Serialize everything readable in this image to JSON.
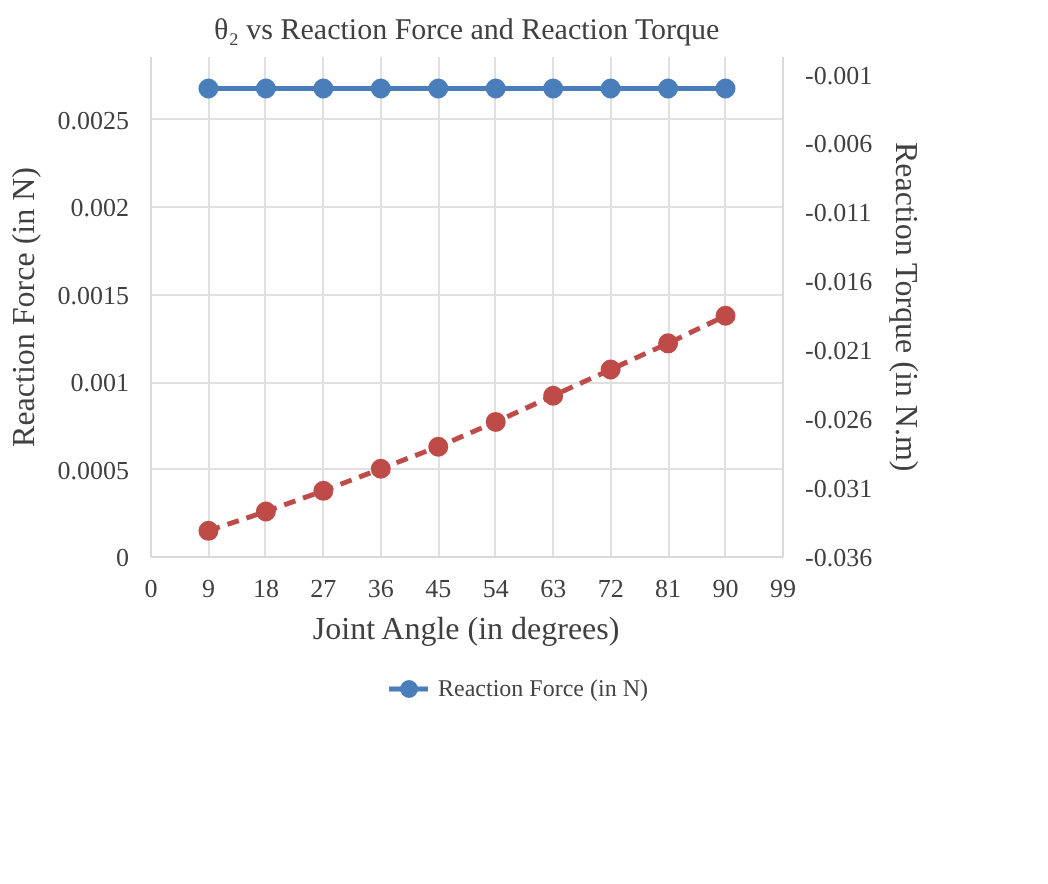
{
  "chart_data": {
    "type": "line",
    "title": "θ₂ vs Reaction Force and Reaction Torque",
    "xlabel": "Joint Angle (in degrees)",
    "ylabel": "Reaction Force (in N)",
    "y2label": "Reaction Torque (in N.m)",
    "x": [
      9,
      18,
      27,
      36,
      45,
      54,
      63,
      72,
      81,
      90
    ],
    "series": [
      {
        "name": "Reaction Force (in N)",
        "color": "#4a7ebb",
        "values": [
          0.00268,
          0.00268,
          0.00268,
          0.00268,
          0.00268,
          0.00268,
          0.00268,
          0.00268,
          0.00268,
          0.00268
        ],
        "line_style": "solid"
      },
      {
        "color": "#be4b48",
        "axis": "y2",
        "values": [
          -0.0341,
          -0.0327,
          -0.0312,
          -0.0296,
          -0.028,
          -0.0262,
          -0.0243,
          -0.0224,
          -0.0205,
          -0.0185
        ],
        "line_style": "dashed"
      }
    ],
    "xlim": [
      0,
      99
    ],
    "xticks": [
      0,
      9,
      18,
      27,
      36,
      45,
      54,
      63,
      72,
      81,
      90,
      99
    ],
    "ylim": [
      0,
      0.00286
    ],
    "yticks": [
      0,
      0.0005,
      0.001,
      0.0015,
      0.002,
      0.0025
    ],
    "y2lim": [
      -0.036,
      0.00027
    ],
    "y2ticks": [
      -0.036,
      -0.031,
      -0.026,
      -0.021,
      -0.016,
      -0.011,
      -0.006,
      -0.001
    ],
    "grid": true,
    "legend": "bottom",
    "marker": "circle"
  }
}
